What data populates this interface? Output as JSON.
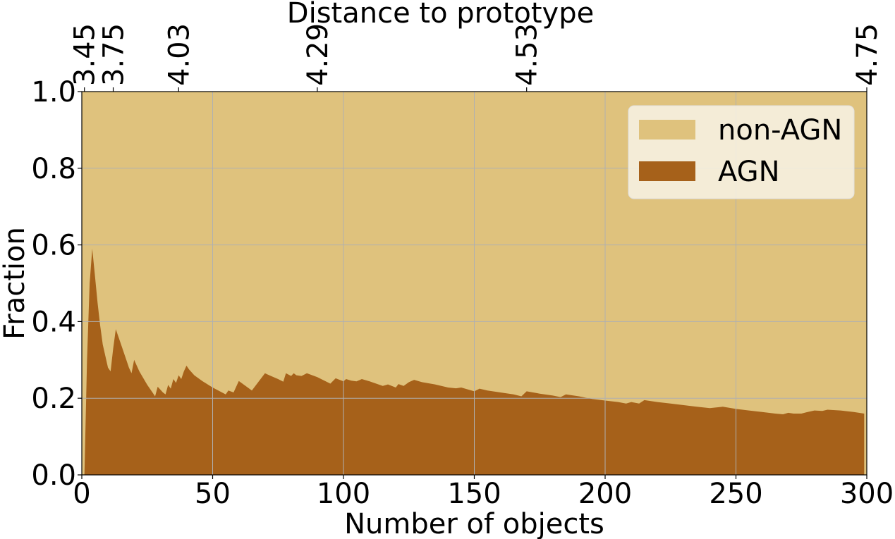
{
  "chart_data": {
    "type": "area",
    "xlabel": "Number of objects",
    "ylabel": "Fraction",
    "top_xlabel": "Distance to prototype",
    "xlim": [
      0,
      300
    ],
    "ylim": [
      0,
      1
    ],
    "x_ticks": [
      0,
      50,
      100,
      150,
      200,
      250,
      300
    ],
    "y_ticks": [
      "0.0",
      "0.2",
      "0.4",
      "0.6",
      "0.8",
      "1.0"
    ],
    "top_ticks": [
      {
        "x": 1,
        "label": "3.45"
      },
      {
        "x": 12,
        "label": "3.75"
      },
      {
        "x": 37,
        "label": "4.03"
      },
      {
        "x": 90,
        "label": "4.29"
      },
      {
        "x": 170,
        "label": "4.53"
      },
      {
        "x": 300,
        "label": "4.75"
      }
    ],
    "grid": true,
    "legend_position": "top-right",
    "colors": {
      "non_agn": "#dfc27d",
      "agn": "#a6611a"
    },
    "series": [
      {
        "name": "non-AGN",
        "color": "#dfc27d",
        "values_note": "1 - AGN"
      },
      {
        "name": "AGN",
        "color": "#a6611a",
        "x": [
          1,
          2,
          3,
          4,
          5,
          6,
          7,
          8,
          9,
          10,
          11,
          12,
          13,
          15,
          17,
          18,
          19,
          20,
          22,
          25,
          27,
          28,
          29,
          31,
          32,
          33,
          34,
          35,
          36,
          37,
          38,
          39,
          40,
          41,
          43,
          46,
          50,
          55,
          56,
          58,
          60,
          65,
          70,
          71,
          75,
          77,
          78,
          80,
          81,
          82,
          84,
          86,
          90,
          95,
          97,
          100,
          101,
          103,
          105,
          107,
          110,
          115,
          117,
          120,
          121,
          123,
          125,
          127,
          130,
          135,
          140,
          143,
          145,
          150,
          152,
          155,
          160,
          165,
          168,
          170,
          175,
          180,
          183,
          185,
          190,
          195,
          200,
          205,
          208,
          210,
          213,
          215,
          220,
          225,
          230,
          235,
          240,
          245,
          250,
          255,
          260,
          265,
          268,
          270,
          272,
          275,
          278,
          280,
          283,
          285,
          290,
          295,
          299
        ],
        "y": [
          0.0,
          0.3,
          0.5,
          0.59,
          0.52,
          0.45,
          0.39,
          0.34,
          0.31,
          0.28,
          0.27,
          0.33,
          0.38,
          0.34,
          0.3,
          0.28,
          0.265,
          0.3,
          0.27,
          0.235,
          0.215,
          0.205,
          0.23,
          0.215,
          0.21,
          0.235,
          0.225,
          0.25,
          0.24,
          0.26,
          0.25,
          0.27,
          0.285,
          0.275,
          0.26,
          0.245,
          0.228,
          0.21,
          0.22,
          0.215,
          0.245,
          0.22,
          0.265,
          0.262,
          0.25,
          0.243,
          0.265,
          0.258,
          0.265,
          0.26,
          0.258,
          0.265,
          0.255,
          0.238,
          0.252,
          0.244,
          0.25,
          0.246,
          0.244,
          0.25,
          0.244,
          0.232,
          0.236,
          0.228,
          0.237,
          0.232,
          0.242,
          0.248,
          0.242,
          0.236,
          0.228,
          0.226,
          0.228,
          0.218,
          0.225,
          0.22,
          0.215,
          0.21,
          0.205,
          0.218,
          0.212,
          0.207,
          0.203,
          0.21,
          0.205,
          0.198,
          0.194,
          0.19,
          0.186,
          0.19,
          0.186,
          0.195,
          0.19,
          0.186,
          0.182,
          0.178,
          0.174,
          0.178,
          0.172,
          0.168,
          0.164,
          0.16,
          0.158,
          0.162,
          0.16,
          0.16,
          0.165,
          0.168,
          0.167,
          0.17,
          0.168,
          0.164,
          0.16
        ]
      }
    ]
  }
}
